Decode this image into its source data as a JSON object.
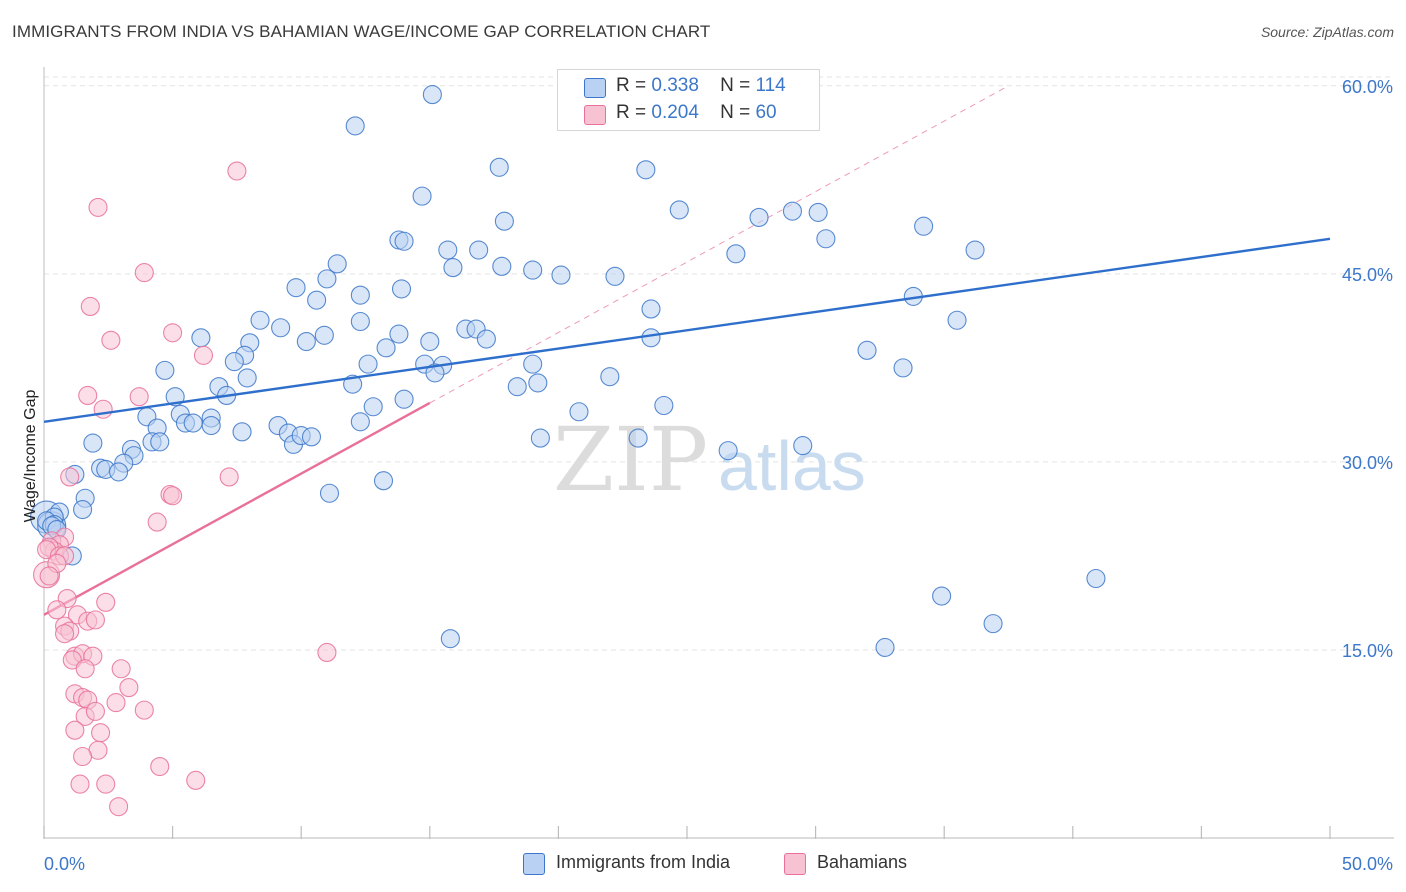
{
  "title": "IMMIGRANTS FROM INDIA VS BAHAMIAN WAGE/INCOME GAP CORRELATION CHART",
  "source": "Source: ZipAtlas.com",
  "watermark": {
    "zip": "ZIP",
    "atlas": "atlas"
  },
  "colors": {
    "blue": "#3c77c9",
    "blue_fill": "#b9d1f2",
    "blue_line": "#2f6fcc",
    "pink": "#e8709a",
    "pink_fill": "#f7c3d3",
    "grid": "#e3e3e3"
  },
  "legend": {
    "series1": {
      "r_label": "R =",
      "r_value": "0.338",
      "n_label": "N =",
      "n_value": "114"
    },
    "series2": {
      "r_label": "R =",
      "r_value": "0.204",
      "n_label": "N =",
      "n_value": "60"
    }
  },
  "bottom_legend": {
    "series1": "Immigrants from India",
    "series2": "Bahamians"
  },
  "chart_data": {
    "type": "scatter",
    "title": "IMMIGRANTS FROM INDIA VS BAHAMIAN WAGE/INCOME GAP CORRELATION CHART",
    "xlabel": "",
    "ylabel": "Wage/Income Gap",
    "xlim": [
      0,
      50
    ],
    "ylim": [
      0,
      61.5
    ],
    "x_tick_labels": [
      "0.0%",
      "50.0%"
    ],
    "y_ticks": [
      15,
      30,
      45,
      60
    ],
    "y_tick_labels": [
      "15.0%",
      "30.0%",
      "45.0%",
      "60.0%"
    ],
    "grid": true,
    "series": [
      {
        "name": "Immigrants from India",
        "color": "#3c77c9",
        "r": 0.338,
        "n": 114,
        "trendline": {
          "x": [
            0,
            50
          ],
          "y": [
            33.2,
            47.8
          ],
          "style": "solid"
        },
        "points": [
          [
            15.1,
            59.3
          ],
          [
            12.1,
            56.8
          ],
          [
            17.7,
            53.5
          ],
          [
            23.4,
            53.3
          ],
          [
            14.7,
            51.2
          ],
          [
            24.7,
            50.1
          ],
          [
            17.9,
            49.2
          ],
          [
            29.1,
            50.0
          ],
          [
            30.1,
            49.9
          ],
          [
            27.8,
            49.5
          ],
          [
            13.8,
            47.7
          ],
          [
            14.0,
            47.6
          ],
          [
            30.4,
            47.8
          ],
          [
            15.7,
            46.9
          ],
          [
            16.9,
            46.9
          ],
          [
            26.9,
            46.6
          ],
          [
            34.2,
            48.8
          ],
          [
            36.2,
            46.9
          ],
          [
            11.4,
            45.8
          ],
          [
            15.9,
            45.5
          ],
          [
            17.8,
            45.6
          ],
          [
            19.0,
            45.3
          ],
          [
            20.1,
            44.9
          ],
          [
            22.2,
            44.8
          ],
          [
            11.0,
            44.6
          ],
          [
            9.8,
            43.9
          ],
          [
            12.3,
            43.3
          ],
          [
            13.9,
            43.8
          ],
          [
            10.6,
            42.9
          ],
          [
            23.6,
            42.2
          ],
          [
            33.8,
            43.2
          ],
          [
            35.5,
            41.3
          ],
          [
            8.4,
            41.3
          ],
          [
            12.3,
            41.2
          ],
          [
            9.2,
            40.7
          ],
          [
            16.4,
            40.6
          ],
          [
            16.8,
            40.6
          ],
          [
            8.0,
            39.5
          ],
          [
            13.8,
            40.2
          ],
          [
            10.9,
            40.1
          ],
          [
            10.2,
            39.6
          ],
          [
            15.0,
            39.6
          ],
          [
            17.2,
            39.8
          ],
          [
            23.6,
            39.9
          ],
          [
            6.1,
            39.9
          ],
          [
            13.3,
            39.1
          ],
          [
            7.8,
            38.5
          ],
          [
            14.8,
            37.8
          ],
          [
            7.4,
            38.0
          ],
          [
            32.0,
            38.9
          ],
          [
            12.6,
            37.8
          ],
          [
            19.0,
            37.8
          ],
          [
            15.5,
            37.7
          ],
          [
            4.7,
            37.3
          ],
          [
            15.2,
            37.1
          ],
          [
            22.0,
            36.8
          ],
          [
            7.9,
            36.7
          ],
          [
            12.0,
            36.2
          ],
          [
            6.8,
            36.0
          ],
          [
            19.2,
            36.3
          ],
          [
            33.4,
            37.5
          ],
          [
            18.4,
            36.0
          ],
          [
            7.1,
            35.3
          ],
          [
            5.1,
            35.2
          ],
          [
            14.0,
            35.0
          ],
          [
            4.0,
            33.6
          ],
          [
            5.3,
            33.8
          ],
          [
            12.8,
            34.4
          ],
          [
            24.1,
            34.5
          ],
          [
            20.8,
            34.0
          ],
          [
            5.5,
            33.1
          ],
          [
            6.5,
            33.5
          ],
          [
            4.4,
            32.7
          ],
          [
            5.8,
            33.1
          ],
          [
            6.5,
            32.9
          ],
          [
            12.3,
            33.2
          ],
          [
            9.1,
            32.9
          ],
          [
            7.7,
            32.4
          ],
          [
            9.5,
            32.3
          ],
          [
            9.7,
            31.4
          ],
          [
            10.0,
            32.1
          ],
          [
            10.4,
            32.0
          ],
          [
            23.1,
            31.9
          ],
          [
            19.3,
            31.9
          ],
          [
            4.2,
            31.6
          ],
          [
            4.5,
            31.6
          ],
          [
            1.9,
            31.5
          ],
          [
            3.4,
            31.0
          ],
          [
            3.5,
            30.5
          ],
          [
            26.6,
            30.9
          ],
          [
            29.5,
            31.3
          ],
          [
            3.1,
            29.9
          ],
          [
            2.2,
            29.5
          ],
          [
            1.2,
            29.0
          ],
          [
            2.4,
            29.4
          ],
          [
            2.9,
            29.2
          ],
          [
            13.2,
            28.5
          ],
          [
            11.1,
            27.5
          ],
          [
            1.6,
            27.1
          ],
          [
            0.6,
            26.0
          ],
          [
            1.5,
            26.2
          ],
          [
            0.4,
            25.6
          ],
          [
            0.1,
            25.3
          ],
          [
            0.4,
            25.0
          ],
          [
            0.3,
            24.9
          ],
          [
            0.5,
            24.6
          ],
          [
            1.1,
            22.5
          ],
          [
            40.9,
            20.7
          ],
          [
            34.9,
            19.3
          ],
          [
            36.9,
            17.1
          ],
          [
            15.8,
            15.9
          ],
          [
            32.7,
            15.2
          ]
        ]
      },
      {
        "name": "Bahamians",
        "color": "#e8709a",
        "r": 0.204,
        "n": 60,
        "trendline": {
          "x": [
            0,
            15
          ],
          "y": [
            17.8,
            34.7
          ],
          "style": "solid",
          "extension": {
            "x": [
              15,
              37.5
            ],
            "y": [
              34.7,
              60
            ],
            "style": "dashed"
          }
        },
        "points": [
          [
            7.5,
            53.2
          ],
          [
            2.1,
            50.3
          ],
          [
            3.9,
            45.1
          ],
          [
            1.8,
            42.4
          ],
          [
            5.0,
            40.3
          ],
          [
            2.6,
            39.7
          ],
          [
            6.2,
            38.5
          ],
          [
            3.7,
            35.2
          ],
          [
            1.7,
            35.3
          ],
          [
            2.3,
            34.2
          ],
          [
            1.0,
            28.8
          ],
          [
            7.2,
            28.8
          ],
          [
            4.9,
            27.4
          ],
          [
            5.0,
            27.3
          ],
          [
            4.4,
            25.2
          ],
          [
            0.8,
            24.0
          ],
          [
            0.3,
            23.7
          ],
          [
            0.6,
            23.4
          ],
          [
            0.4,
            22.9
          ],
          [
            0.2,
            23.2
          ],
          [
            0.1,
            23.0
          ],
          [
            0.6,
            22.5
          ],
          [
            0.8,
            22.5
          ],
          [
            0.5,
            21.9
          ],
          [
            0.2,
            20.9
          ],
          [
            0.9,
            19.1
          ],
          [
            2.4,
            18.8
          ],
          [
            0.5,
            18.2
          ],
          [
            1.3,
            17.8
          ],
          [
            1.7,
            17.3
          ],
          [
            2.0,
            17.4
          ],
          [
            0.8,
            16.9
          ],
          [
            1.0,
            16.5
          ],
          [
            0.8,
            16.3
          ],
          [
            1.2,
            14.5
          ],
          [
            1.5,
            14.7
          ],
          [
            1.1,
            14.2
          ],
          [
            1.9,
            14.5
          ],
          [
            3.0,
            13.5
          ],
          [
            1.6,
            13.5
          ],
          [
            11.0,
            14.8
          ],
          [
            3.3,
            12.0
          ],
          [
            1.2,
            11.5
          ],
          [
            1.5,
            11.2
          ],
          [
            1.7,
            11.0
          ],
          [
            2.8,
            10.8
          ],
          [
            3.9,
            10.2
          ],
          [
            1.6,
            9.7
          ],
          [
            2.0,
            10.1
          ],
          [
            1.2,
            8.6
          ],
          [
            2.2,
            8.4
          ],
          [
            2.1,
            7.0
          ],
          [
            1.5,
            6.5
          ],
          [
            4.5,
            5.7
          ],
          [
            5.9,
            4.6
          ],
          [
            1.4,
            4.3
          ],
          [
            2.4,
            4.3
          ],
          [
            2.9,
            2.5
          ]
        ]
      }
    ]
  }
}
